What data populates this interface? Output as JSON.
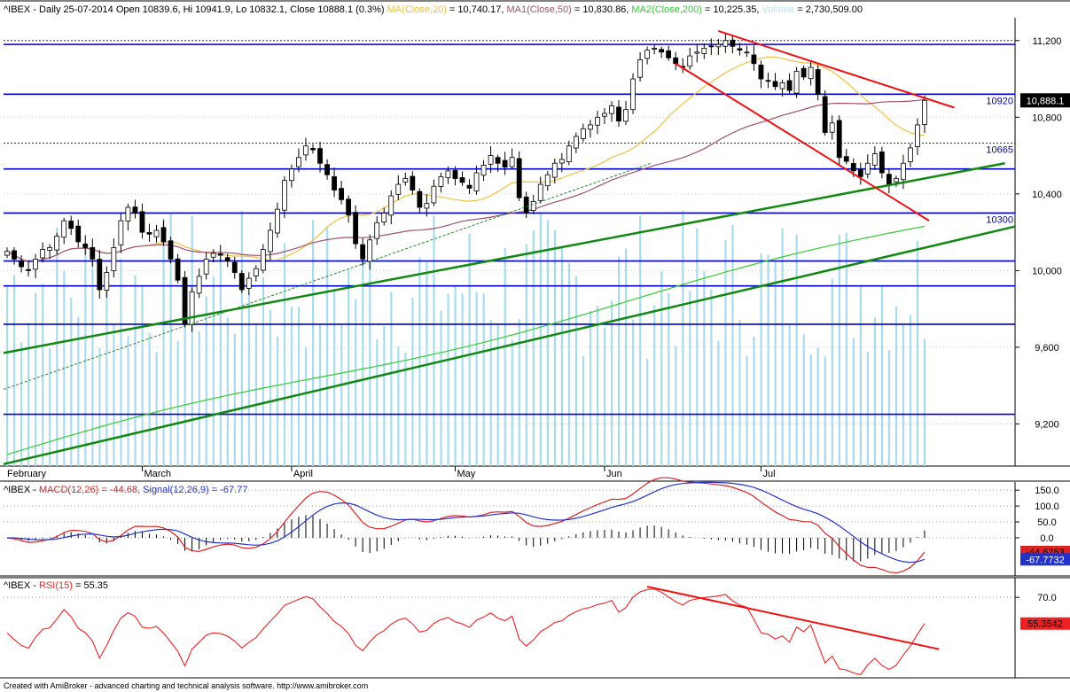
{
  "header": {
    "symbol": "^IBEX",
    "summary": "^IBEX - Daily 25-07-2014 Open 10839.6, Hi 10941.9, Lo 10832.1, Close 10888.1 (0.3%)",
    "ma20_label": "MA(Close,20)",
    "ma20_value": " = 10,740.17, ",
    "ma50_label": "MA1(Close,50)",
    "ma50_value": " = 10,830.86, ",
    "ma200_label": "MA2(Close,200)",
    "ma200_value": " = 10,225.35, ",
    "volume_label": "Volume",
    "volume_value": " = 2,730,509.00"
  },
  "macd_header": {
    "prefix": "^IBEX - ",
    "macd_label": "MACD(12,26) = -44.68, ",
    "signal_label": "Signal(12,26,9) = -67.77"
  },
  "rsi_header": {
    "prefix": "^IBEX - ",
    "rsi_label": "RSI(15)",
    "rsi_value": " = 55.35"
  },
  "footer": "Created with AmiBroker - advanced charting and technical analysis software. http://www.amibroker.com",
  "colors": {
    "up_candle": "#ffffff",
    "down_candle": "#000000",
    "ma20": "#f0c040",
    "ma50": "#a05070",
    "ma200": "#33cc33",
    "volume": "#a8dcec",
    "trend_green": "#118811",
    "trend_red": "#ee1111",
    "hline_blue": "#0000cc",
    "macd": "#dd2222",
    "signal": "#2233cc",
    "rsi": "#ee2222"
  },
  "chart_data": [
    {
      "type": "candlestick",
      "title": "^IBEX - Daily",
      "x_axis_labels": [
        "February",
        "March",
        "April",
        "May",
        "Jun",
        "Jul"
      ],
      "y_ticks": [
        9200,
        9600,
        10000,
        10400,
        10800,
        11200
      ],
      "y_tick_labels": [
        "9,200",
        "9,600",
        "10,000",
        "10,400",
        "10,800",
        "11,200"
      ],
      "ylim": [
        8980,
        11310
      ],
      "last_price_label": "10,888.1",
      "horizontal_levels": [
        {
          "value": 11180,
          "label": ""
        },
        {
          "value": 10920,
          "label": "10920"
        },
        {
          "value": 10530,
          "label": ""
        },
        {
          "value": 10300,
          "label": "10300"
        },
        {
          "value": 10050,
          "label": ""
        },
        {
          "value": 9920,
          "label": ""
        },
        {
          "value": 9720,
          "label": ""
        },
        {
          "value": 9250,
          "label": ""
        }
      ],
      "dotted_levels": [
        11200,
        10665
      ],
      "dotted_level_labels": [
        "",
        "10665"
      ],
      "close_series": [
        10100,
        10060,
        10020,
        10000,
        10060,
        10110,
        10120,
        10180,
        10260,
        10220,
        10150,
        10120,
        10060,
        9900,
        9990,
        10120,
        10260,
        10330,
        10300,
        10200,
        10190,
        10210,
        10150,
        10060,
        9950,
        9720,
        9890,
        9970,
        10060,
        10090,
        10080,
        10050,
        9990,
        9900,
        9960,
        10010,
        10110,
        10210,
        10320,
        10470,
        10530,
        10590,
        10650,
        10630,
        10560,
        10500,
        10420,
        10370,
        10290,
        10140,
        10060,
        10160,
        10250,
        10300,
        10390,
        10450,
        10480,
        10420,
        10330,
        10350,
        10440,
        10490,
        10520,
        10480,
        10460,
        10430,
        10510,
        10550,
        10600,
        10560,
        10540,
        10590,
        10380,
        10300,
        10360,
        10450,
        10500,
        10560,
        10580,
        10650,
        10700,
        10740,
        10760,
        10800,
        10820,
        10860,
        10780,
        10840,
        11000,
        11100,
        11150,
        11160,
        11140,
        11110,
        11080,
        11060,
        11120,
        11140,
        11160,
        11170,
        11180,
        11200,
        11170,
        11150,
        11140,
        11080,
        11000,
        10990,
        10960,
        10980,
        10940,
        11040,
        11010,
        11060,
        10920,
        10720,
        10770,
        10590,
        10570,
        10520,
        10490,
        10560,
        10610,
        10510,
        10450,
        10480,
        10560,
        10640,
        10760,
        10888
      ]
    },
    {
      "type": "line",
      "title": "MACD(12,26)",
      "series": [
        {
          "name": "MACD(12,26)",
          "last_value": -44.68
        },
        {
          "name": "Signal(12,26,9)",
          "last_value": -67.77
        }
      ],
      "y_ticks": [
        150.0,
        100.0,
        50.0,
        0.0
      ],
      "y_tick_labels": [
        "150.0",
        "100.0",
        "50.0",
        "0.0"
      ],
      "ylim": [
        -120,
        170
      ],
      "value_labels": [
        "-44.6763",
        "-67.7732"
      ]
    },
    {
      "type": "line",
      "title": "RSI(15)",
      "series": [
        {
          "name": "RSI(15)",
          "last_value": 55.35
        }
      ],
      "y_ticks": [
        70.0
      ],
      "y_tick_labels": [
        "70.0"
      ],
      "ylim": [
        25,
        80
      ],
      "value_labels": [
        "55.3542"
      ]
    }
  ]
}
